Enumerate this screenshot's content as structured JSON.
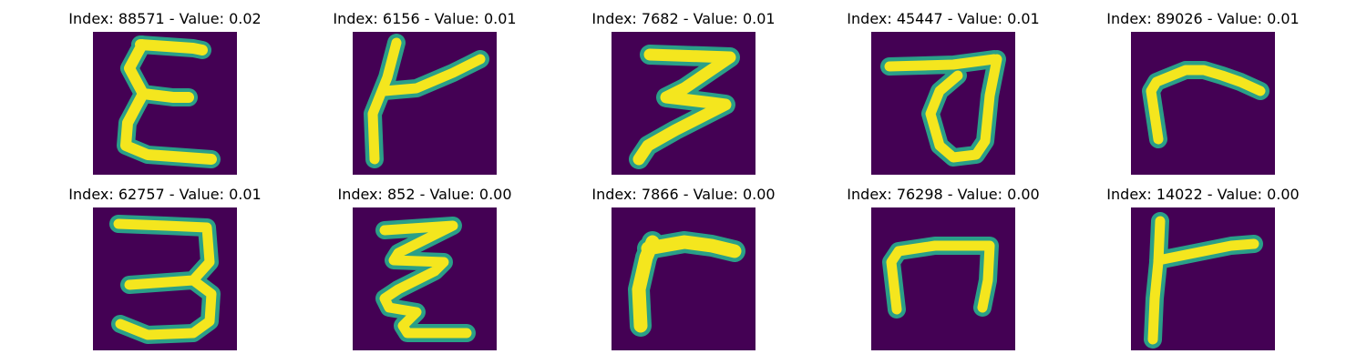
{
  "colors": {
    "background": "#440154",
    "stroke_outer": "#2a9f88",
    "stroke_inner": "#f4e61e"
  },
  "panels": [
    {
      "title": "Index: 88571 - Value: 0.02",
      "glyph": "epsilon-shape"
    },
    {
      "title": "Index: 6156 - Value: 0.01",
      "glyph": "t-shape"
    },
    {
      "title": "Index: 7682 - Value: 0.01",
      "glyph": "three-shape"
    },
    {
      "title": "Index: 45447 - Value: 0.01",
      "glyph": "loop-shape"
    },
    {
      "title": "Index: 89026 - Value: 0.01",
      "glyph": "r-shape"
    },
    {
      "title": "Index: 62757 - Value: 0.01",
      "glyph": "three-open-shape"
    },
    {
      "title": "Index: 852 - Value: 0.00",
      "glyph": "zigzag-shape"
    },
    {
      "title": "Index: 7866 - Value: 0.00",
      "glyph": "r-shape"
    },
    {
      "title": "Index: 76298 - Value: 0.00",
      "glyph": "n-shape"
    },
    {
      "title": "Index: 14022 - Value: 0.00",
      "glyph": "t-shape"
    }
  ]
}
